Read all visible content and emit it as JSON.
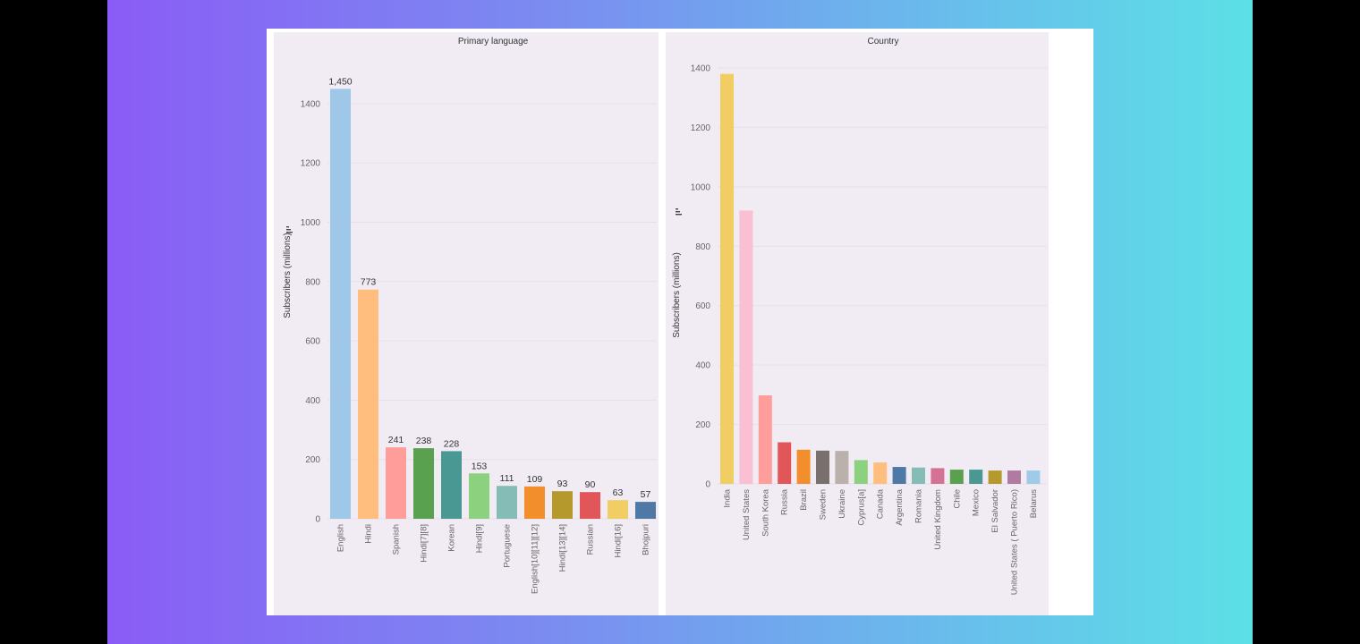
{
  "chart_data": [
    {
      "type": "bar",
      "title": "Primary language",
      "ylabel": "Subscribers (millions)",
      "xlabel": "",
      "ylim": [
        0,
        1460
      ],
      "yticks": [
        0,
        200,
        400,
        600,
        800,
        1000,
        1200,
        1400
      ],
      "categories": [
        "English",
        "Hindi",
        "Spanish",
        "Hindi[7][8]",
        "Korean",
        "Hindi[9]",
        "Portuguese",
        "English[10][11][12]",
        "Hindi[13][14]",
        "Russian",
        "Hindi[16]",
        "Bhojpuri"
      ],
      "values": [
        1450,
        773,
        241,
        238,
        228,
        153,
        111,
        109,
        93,
        90,
        63,
        57
      ],
      "data_labels": [
        "1,450",
        "773",
        "241",
        "238",
        "228",
        "153",
        "111",
        "109",
        "93",
        "90",
        "63",
        "57"
      ],
      "colors": [
        "#9fc8e8",
        "#ffbe7d",
        "#ff9d9a",
        "#59a14f",
        "#499894",
        "#8cd17d",
        "#86bcb6",
        "#f28e2b",
        "#b6992d",
        "#e15759",
        "#f1ce63",
        "#4e79a7"
      ]
    },
    {
      "type": "bar",
      "title": "Country",
      "ylabel": "Subscribers (millions)",
      "xlabel": "",
      "ylim": [
        0,
        1400
      ],
      "yticks": [
        0,
        200,
        400,
        600,
        800,
        1000,
        1200,
        1400
      ],
      "categories": [
        "India",
        "United States",
        "South Korea",
        "Russia",
        "Brazil",
        "Sweden",
        "Ukraine",
        "Cyprus[a]",
        "Canada",
        "Argentina",
        "Romania",
        "United Kingdom",
        "Chile",
        "Mexico",
        "El Salvador",
        "United States ( Puerto Rico)",
        "Belarus"
      ],
      "values": [
        1380,
        920,
        298,
        140,
        115,
        112,
        111,
        80,
        72,
        57,
        55,
        53,
        48,
        48,
        45,
        45,
        45
      ],
      "colors": [
        "#f1ce63",
        "#fabfd2",
        "#ff9d9a",
        "#e15759",
        "#f28e2b",
        "#79706e",
        "#bab0ac",
        "#8cd17d",
        "#ffbe7d",
        "#4e79a7",
        "#86bcb6",
        "#d37295",
        "#59a14f",
        "#499894",
        "#b6992d",
        "#b07aa1",
        "#a0cbe8"
      ]
    }
  ]
}
